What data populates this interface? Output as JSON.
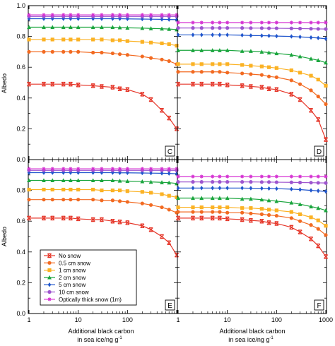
{
  "figure": {
    "ylabel_top": "Albedo",
    "ylabel_bottom": "Albedo",
    "xlabel_left_line1": "Additional black carbon",
    "xlabel_left_line2": "in sea ice/ng g",
    "xlabel_right_line1": "Additional black carbon",
    "xlabel_right_line2": "in sea ice/ng g",
    "xlabel_sup": "-1",
    "y_ticks": [
      "0.0",
      "0.2",
      "0.4",
      "0.6",
      "0.8",
      "1.0"
    ],
    "x_ticks": [
      "1",
      "10",
      "100",
      "1000"
    ],
    "x_values": [
      1,
      2,
      3,
      5,
      7,
      10,
      20,
      30,
      50,
      70,
      100,
      200,
      300,
      500,
      700,
      1000
    ]
  },
  "legend": {
    "entries": [
      {
        "label": "No snow",
        "color": "#e53528",
        "marker": "hourglass"
      },
      {
        "label": "0.5 cm snow",
        "color": "#f26a21",
        "marker": "circle"
      },
      {
        "label": "1 cm snow",
        "color": "#fbb224",
        "marker": "square"
      },
      {
        "label": "2 cm snow",
        "color": "#1aa53d",
        "marker": "triangle"
      },
      {
        "label": "5 cm snow",
        "color": "#1f55cc",
        "marker": "diamond"
      },
      {
        "label": "10 cm snow",
        "color": "#9e55cf",
        "marker": "circle"
      },
      {
        "label": "Optically thick snow (1m)",
        "color": "#d531d2",
        "marker": "asterisk"
      }
    ]
  },
  "chart_data": [
    {
      "type": "line",
      "panel": "top-left",
      "xscale": "log",
      "xlim": [
        1,
        1000
      ],
      "ylim": [
        0,
        1
      ],
      "grid": false,
      "series": [
        {
          "name": "No snow",
          "values": [
            0.49,
            0.49,
            0.49,
            0.49,
            0.49,
            0.485,
            0.48,
            0.475,
            0.47,
            0.46,
            0.455,
            0.425,
            0.39,
            0.32,
            0.27,
            0.2
          ]
        },
        {
          "name": "0.5 cm snow",
          "values": [
            0.7,
            0.7,
            0.7,
            0.7,
            0.7,
            0.7,
            0.695,
            0.695,
            0.69,
            0.685,
            0.68,
            0.67,
            0.66,
            0.65,
            0.64,
            0.62
          ]
        },
        {
          "name": "1 cm snow",
          "values": [
            0.78,
            0.78,
            0.78,
            0.78,
            0.78,
            0.78,
            0.78,
            0.78,
            0.775,
            0.775,
            0.77,
            0.765,
            0.76,
            0.755,
            0.75,
            0.74
          ]
        },
        {
          "name": "2 cm snow",
          "values": [
            0.86,
            0.86,
            0.86,
            0.86,
            0.86,
            0.86,
            0.86,
            0.86,
            0.86,
            0.858,
            0.856,
            0.854,
            0.852,
            0.85,
            0.848,
            0.845
          ]
        },
        {
          "name": "5 cm snow",
          "values": [
            0.915,
            0.915,
            0.915,
            0.915,
            0.915,
            0.915,
            0.915,
            0.915,
            0.915,
            0.915,
            0.914,
            0.913,
            0.912,
            0.911,
            0.91,
            0.909
          ]
        },
        {
          "name": "10 cm snow",
          "values": [
            0.93,
            0.93,
            0.93,
            0.93,
            0.93,
            0.93,
            0.93,
            0.93,
            0.93,
            0.93,
            0.93,
            0.93,
            0.93,
            0.93,
            0.93,
            0.93
          ]
        },
        {
          "name": "Optically thick snow (1m)",
          "values": [
            0.94,
            0.94,
            0.94,
            0.94,
            0.94,
            0.94,
            0.94,
            0.94,
            0.94,
            0.94,
            0.94,
            0.94,
            0.94,
            0.94,
            0.94,
            0.94
          ]
        }
      ]
    },
    {
      "type": "line",
      "panel": "top-right",
      "xscale": "log",
      "xlim": [
        1,
        1000
      ],
      "ylim": [
        0,
        1
      ],
      "grid": false,
      "series": [
        {
          "name": "No snow",
          "values": [
            0.49,
            0.49,
            0.49,
            0.49,
            0.49,
            0.485,
            0.48,
            0.475,
            0.47,
            0.46,
            0.455,
            0.425,
            0.39,
            0.32,
            0.26,
            0.13
          ]
        },
        {
          "name": "0.5 cm snow",
          "values": [
            0.57,
            0.57,
            0.57,
            0.57,
            0.57,
            0.565,
            0.56,
            0.555,
            0.55,
            0.54,
            0.535,
            0.515,
            0.49,
            0.45,
            0.41,
            0.36
          ]
        },
        {
          "name": "1 cm snow",
          "values": [
            0.62,
            0.62,
            0.62,
            0.62,
            0.62,
            0.62,
            0.615,
            0.61,
            0.605,
            0.6,
            0.595,
            0.58,
            0.565,
            0.545,
            0.52,
            0.48
          ]
        },
        {
          "name": "2 cm snow",
          "values": [
            0.71,
            0.71,
            0.71,
            0.71,
            0.71,
            0.71,
            0.705,
            0.705,
            0.7,
            0.695,
            0.69,
            0.68,
            0.67,
            0.655,
            0.645,
            0.63
          ]
        },
        {
          "name": "5 cm snow",
          "values": [
            0.81,
            0.81,
            0.81,
            0.81,
            0.81,
            0.81,
            0.808,
            0.806,
            0.805,
            0.804,
            0.802,
            0.8,
            0.797,
            0.793,
            0.79,
            0.785
          ]
        },
        {
          "name": "10 cm snow",
          "values": [
            0.855,
            0.855,
            0.855,
            0.855,
            0.855,
            0.855,
            0.855,
            0.854,
            0.854,
            0.853,
            0.853,
            0.852,
            0.851,
            0.85,
            0.849,
            0.848
          ]
        },
        {
          "name": "Optically thick snow (1m)",
          "values": [
            0.89,
            0.89,
            0.89,
            0.89,
            0.89,
            0.89,
            0.89,
            0.89,
            0.89,
            0.89,
            0.89,
            0.89,
            0.89,
            0.89,
            0.89,
            0.89
          ]
        }
      ]
    },
    {
      "type": "line",
      "panel": "bottom-left",
      "xscale": "log",
      "xlim": [
        1,
        1000
      ],
      "ylim": [
        0,
        1
      ],
      "grid": false,
      "series": [
        {
          "name": "No snow",
          "values": [
            0.62,
            0.62,
            0.62,
            0.62,
            0.62,
            0.615,
            0.61,
            0.61,
            0.6,
            0.595,
            0.59,
            0.57,
            0.545,
            0.5,
            0.46,
            0.38
          ]
        },
        {
          "name": "0.5 cm snow",
          "values": [
            0.74,
            0.74,
            0.74,
            0.74,
            0.74,
            0.74,
            0.74,
            0.735,
            0.735,
            0.73,
            0.725,
            0.715,
            0.705,
            0.69,
            0.675,
            0.655
          ]
        },
        {
          "name": "1 cm snow",
          "values": [
            0.805,
            0.805,
            0.805,
            0.805,
            0.805,
            0.805,
            0.805,
            0.8,
            0.8,
            0.8,
            0.795,
            0.79,
            0.785,
            0.775,
            0.765,
            0.755
          ]
        },
        {
          "name": "2 cm snow",
          "values": [
            0.865,
            0.865,
            0.865,
            0.865,
            0.865,
            0.865,
            0.865,
            0.865,
            0.865,
            0.862,
            0.86,
            0.858,
            0.855,
            0.852,
            0.85,
            0.845
          ]
        },
        {
          "name": "5 cm snow",
          "values": [
            0.915,
            0.915,
            0.915,
            0.915,
            0.915,
            0.915,
            0.915,
            0.915,
            0.915,
            0.914,
            0.914,
            0.913,
            0.912,
            0.911,
            0.91,
            0.908
          ]
        },
        {
          "name": "10 cm snow",
          "values": [
            0.93,
            0.93,
            0.93,
            0.93,
            0.93,
            0.93,
            0.93,
            0.93,
            0.93,
            0.93,
            0.93,
            0.93,
            0.93,
            0.93,
            0.93,
            0.93
          ]
        },
        {
          "name": "Optically thick snow (1m)",
          "values": [
            0.94,
            0.94,
            0.94,
            0.94,
            0.94,
            0.94,
            0.94,
            0.94,
            0.94,
            0.94,
            0.94,
            0.94,
            0.94,
            0.94,
            0.94,
            0.94
          ]
        }
      ]
    },
    {
      "type": "line",
      "panel": "bottom-right",
      "xscale": "log",
      "xlim": [
        1,
        1000
      ],
      "ylim": [
        0,
        1
      ],
      "grid": false,
      "series": [
        {
          "name": "No snow",
          "values": [
            0.62,
            0.62,
            0.62,
            0.62,
            0.62,
            0.615,
            0.61,
            0.605,
            0.6,
            0.59,
            0.585,
            0.56,
            0.53,
            0.485,
            0.44,
            0.37
          ]
        },
        {
          "name": "0.5 cm snow",
          "values": [
            0.66,
            0.66,
            0.66,
            0.66,
            0.66,
            0.655,
            0.655,
            0.65,
            0.645,
            0.64,
            0.635,
            0.62,
            0.6,
            0.575,
            0.55,
            0.51
          ]
        },
        {
          "name": "1 cm snow",
          "values": [
            0.69,
            0.69,
            0.69,
            0.69,
            0.69,
            0.69,
            0.685,
            0.685,
            0.68,
            0.675,
            0.67,
            0.66,
            0.645,
            0.625,
            0.605,
            0.57
          ]
        },
        {
          "name": "2 cm snow",
          "values": [
            0.75,
            0.75,
            0.75,
            0.75,
            0.75,
            0.75,
            0.745,
            0.745,
            0.74,
            0.735,
            0.73,
            0.72,
            0.71,
            0.695,
            0.685,
            0.67
          ]
        },
        {
          "name": "5 cm snow",
          "values": [
            0.815,
            0.815,
            0.815,
            0.815,
            0.815,
            0.815,
            0.815,
            0.814,
            0.813,
            0.812,
            0.811,
            0.808,
            0.805,
            0.8,
            0.797,
            0.793
          ]
        },
        {
          "name": "10 cm snow",
          "values": [
            0.855,
            0.855,
            0.855,
            0.855,
            0.855,
            0.855,
            0.855,
            0.855,
            0.854,
            0.854,
            0.853,
            0.852,
            0.851,
            0.85,
            0.849,
            0.848
          ]
        },
        {
          "name": "Optically thick snow (1m)",
          "values": [
            0.89,
            0.89,
            0.89,
            0.89,
            0.89,
            0.89,
            0.89,
            0.89,
            0.89,
            0.89,
            0.89,
            0.89,
            0.89,
            0.89,
            0.89,
            0.89
          ]
        }
      ]
    }
  ],
  "panels": [
    {
      "label": "",
      "series_visible": [
        true,
        true,
        true,
        true,
        true,
        true,
        true
      ]
    },
    {
      "label": "",
      "series_visible": [
        true,
        true,
        true,
        true,
        true,
        true,
        true
      ]
    },
    {
      "label": "E",
      "series_visible": [
        true,
        true,
        true,
        true,
        true,
        true,
        true
      ]
    },
    {
      "label": "F",
      "series_visible": [
        true,
        true,
        true,
        true,
        true,
        true,
        true
      ]
    }
  ],
  "panel_letters": [
    "C",
    "D",
    "E",
    "F"
  ]
}
